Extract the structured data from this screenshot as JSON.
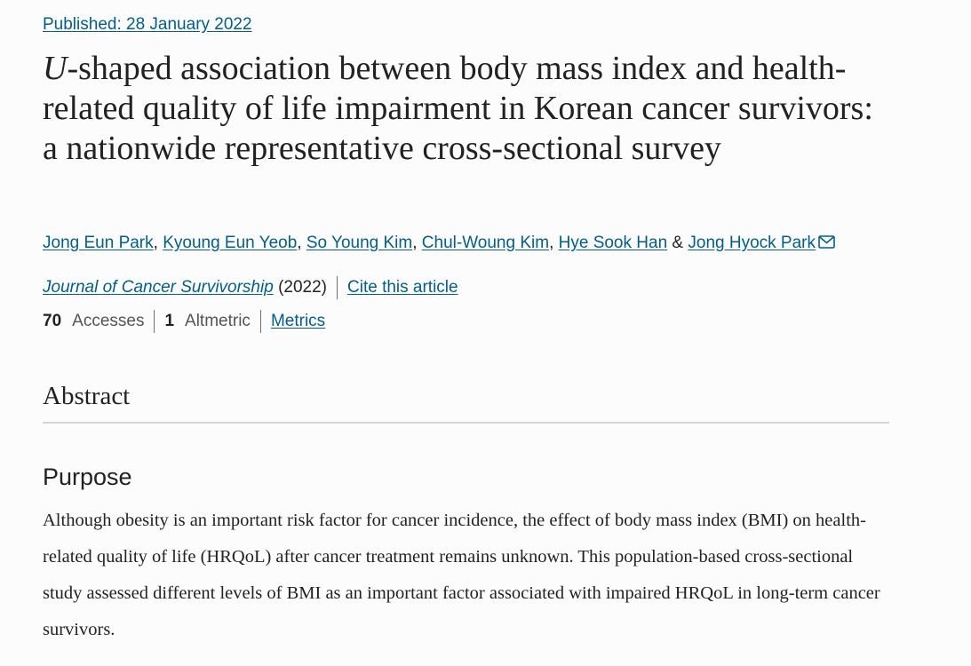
{
  "article": {
    "published_text": "Published: 28 January 2022",
    "title_italic": "U",
    "title_rest": "-shaped association between body mass index and health-related quality of life impairment in Korean cancer survivors: a nationwide representative cross-sectional survey",
    "authors": [
      "Jong Eun Park",
      "Kyoung Eun Yeob",
      "So Young Kim",
      "Chul-Woung Kim",
      "Hye Sook Han",
      "Jong Hyock Park"
    ],
    "author_separator": ", ",
    "author_last_separator": " & ",
    "contact_icon": "mail-icon",
    "journal": "Journal of Cancer Survivorship",
    "year": "(2022)",
    "cite_label": "Cite this article",
    "accesses_count": "70",
    "accesses_label": "Accesses",
    "altmetric_count": "1",
    "altmetric_label": "Altmetric",
    "metrics_label": "Metrics"
  },
  "abstract": {
    "heading": "Abstract",
    "section_heading": "Purpose",
    "section_text": "Although obesity is an important risk factor for cancer incidence, the effect of body mass index (BMI) on health-related quality of life (HRQoL) after cancer treatment remains unknown. This population-based cross-sectional study assessed different levels of BMI as an important factor associated with impaired HRQoL in long-term cancer survivors."
  },
  "colors": {
    "link": "#025e8d",
    "text": "#222222",
    "background": "#fcfcfc",
    "rule": "#d5d5d5"
  }
}
